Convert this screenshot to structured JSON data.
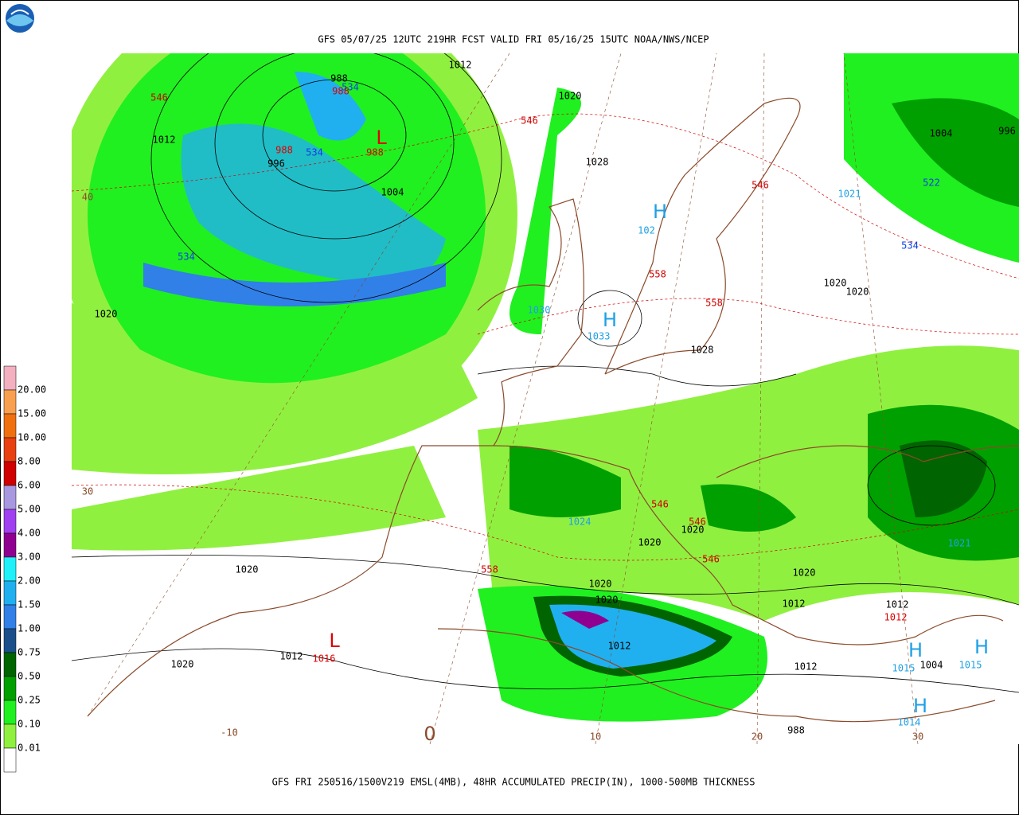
{
  "header": {
    "title": "GFS 05/07/25 12UTC 219HR FCST VALID FRI 05/16/25 15UTC NOAA/NWS/NCEP"
  },
  "footer": {
    "caption": "GFS FRI 250516/1500V219 EMSL(4MB), 48HR ACCUMULATED PRECIP(IN), 1000-500MB THICKNESS"
  },
  "legend": {
    "labels": [
      "20.00",
      "15.00",
      "10.00",
      "8.00",
      "6.00",
      "5.00",
      "4.00",
      "3.00",
      "2.00",
      "1.50",
      "1.00",
      "0.75",
      "0.50",
      "0.25",
      "0.10",
      "0.01"
    ],
    "colors": [
      "#f2b0c0",
      "#f8a050",
      "#f07010",
      "#e84010",
      "#d00000",
      "#a898e0",
      "#a040f0",
      "#900090",
      "#20f0f8",
      "#20b0f0",
      "#3080e8",
      "#1a4f8a",
      "#006400",
      "#00a000",
      "#20f020",
      "#90f040",
      "#ffffff"
    ]
  },
  "map": {
    "pressure_labels": {
      "color": "#000000",
      "items": [
        "1012",
        "1020",
        "1012",
        "996",
        "1004",
        "1028",
        "1020",
        "1020",
        "1020",
        "1028",
        "1004",
        "996",
        "1020",
        "1020",
        "1020",
        "1020",
        "1020",
        "1012",
        "1012",
        "1020",
        "1020",
        "1012",
        "1012",
        "1012",
        "1004",
        "988",
        "988"
      ]
    },
    "low_labels": {
      "color": "#e00000",
      "items": [
        "L",
        "L",
        "988",
        "988",
        "988",
        "1016",
        "1012"
      ]
    },
    "high_labels": {
      "color": "#1ea0e6",
      "items": [
        "H",
        "H",
        "H",
        "H",
        "H",
        "1033",
        "1030",
        "1024",
        "1021",
        "1021",
        "1015",
        "1015",
        "1014",
        "102"
      ]
    },
    "thickness_red": {
      "color": "#d00000",
      "items": [
        "546",
        "546",
        "546",
        "558",
        "558",
        "546",
        "546",
        "546",
        "558"
      ]
    },
    "thickness_blue": {
      "color": "#1040e0",
      "items": [
        "534",
        "534",
        "534",
        "522",
        "534"
      ]
    },
    "grid_labels": {
      "color": "#8b4a2a",
      "items": [
        "40",
        "30",
        "-10",
        "0",
        "10",
        "20",
        "30"
      ]
    }
  }
}
